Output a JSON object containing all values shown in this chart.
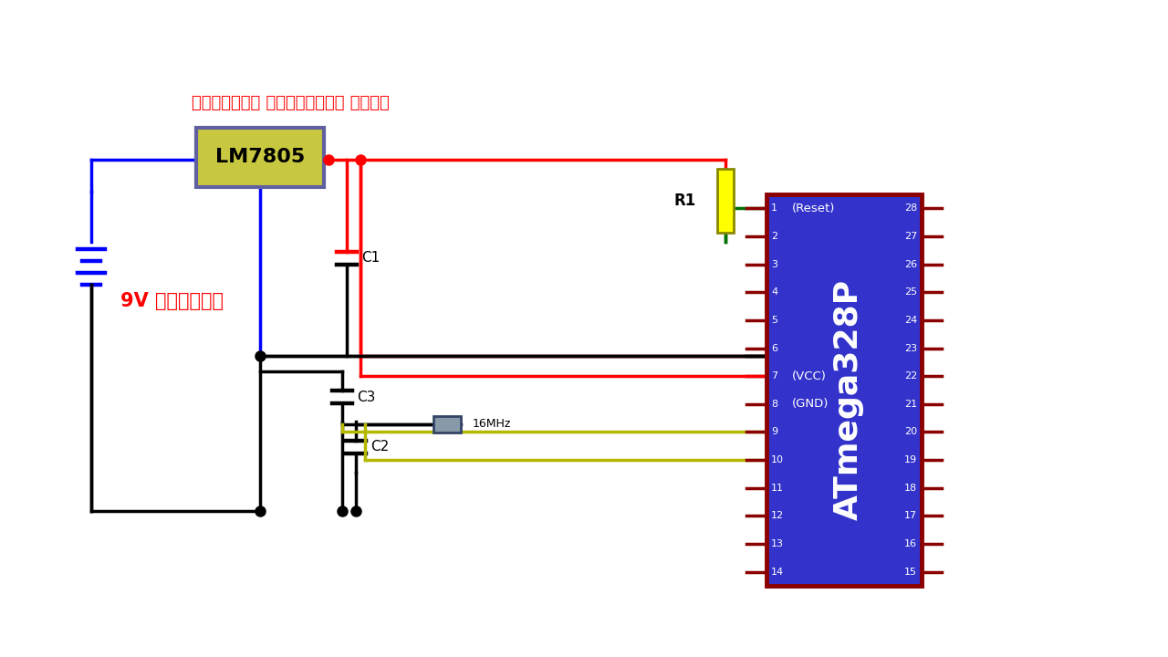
{
  "bg_color": "#ffffff",
  "battery_label": "9V বাটারী",
  "regulator_label": "ভোল্টেজ রেগুলেটর আইসি",
  "lm7805_label": "LM7805",
  "atmega_label": "ATmega328P",
  "r1_label": "R1",
  "c1_label": "C1",
  "c2_label": "C2",
  "c3_label": "C3",
  "crystal_label": "16MHz",
  "reset_label": "(Reset)",
  "vcc_label": "(VCC)",
  "gnd_label": "(GND)",
  "pin_labels_left": [
    "1",
    "2",
    "3",
    "4",
    "5",
    "6",
    "7",
    "8",
    "9",
    "10",
    "11",
    "12",
    "13",
    "14"
  ],
  "pin_labels_right": [
    "28",
    "27",
    "26",
    "25",
    "24",
    "23",
    "22",
    "21",
    "20",
    "19",
    "18",
    "17",
    "16",
    "15"
  ],
  "col_red": "#ff0000",
  "col_blue": "#0000ff",
  "col_black": "#000000",
  "col_yg": "#b5b800",
  "col_green": "#007000",
  "col_darkred": "#8b0000",
  "col_icblue": "#3333cc",
  "col_lmfill": "#c8c840",
  "col_lmborder": "#6060a0",
  "col_resfill": "#ffff00",
  "col_cryfill": "#8899aa",
  "lw": 2.5,
  "lw_thick": 3.2
}
